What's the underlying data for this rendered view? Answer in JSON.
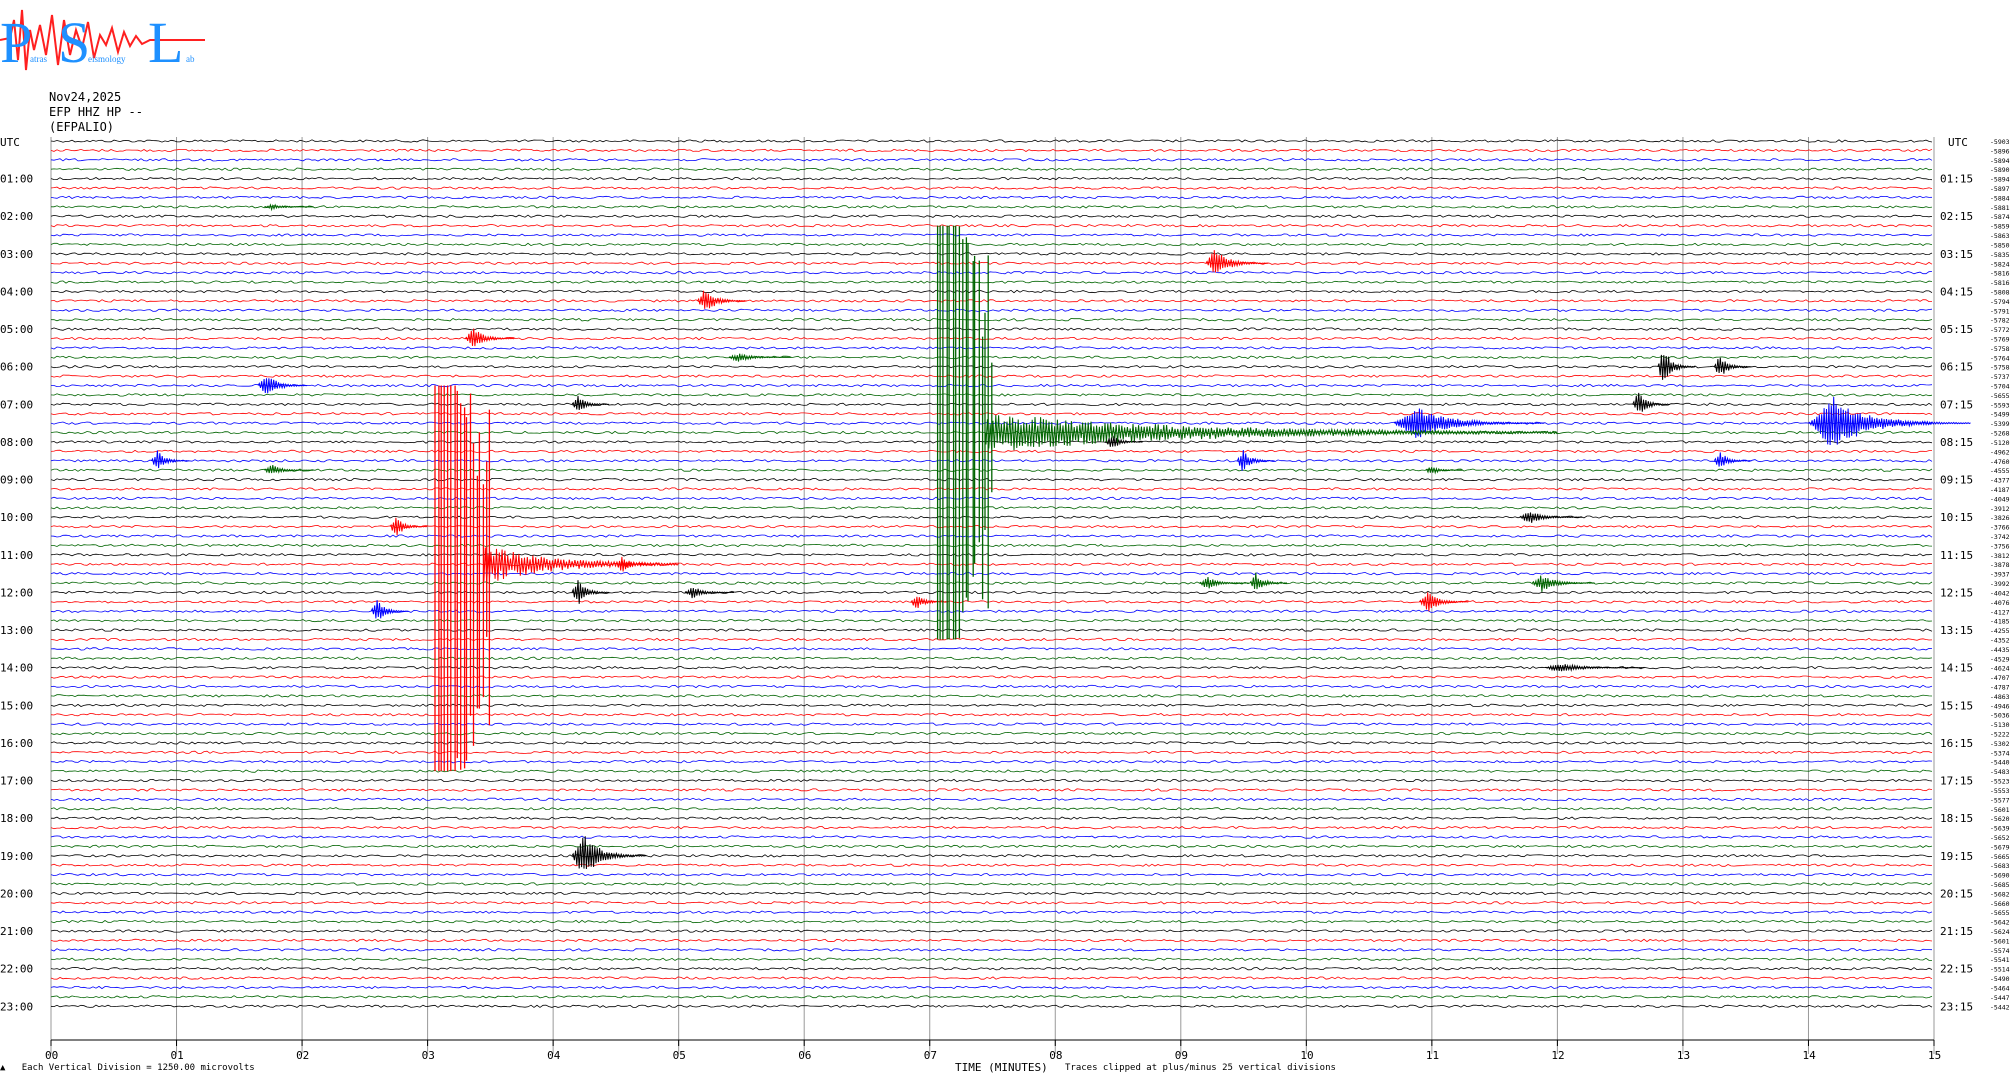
{
  "logo": {
    "letters": [
      "P",
      "S",
      "L"
    ],
    "small_text": [
      "atras",
      "eismology",
      "ab"
    ],
    "colors": {
      "letters": "#1e90ff",
      "wave": "#ff2020"
    }
  },
  "header": {
    "date": "Nov24,2025",
    "station": "EFP HHZ HP --",
    "name": "(EFPALIO)"
  },
  "left_axis_label": "UTC",
  "right_axis_label": "UTC",
  "footer": {
    "marker": "▲",
    "vertical_division": "Each Vertical Division = 1250.00 microvolts",
    "time_label": "TIME (MINUTES)",
    "clip_note": "Traces clipped at plus/minus 25 vertical divisions"
  },
  "chart_data": {
    "type": "helicorder",
    "x_label": "TIME (MINUTES)",
    "x_ticks": [
      "00",
      "01",
      "02",
      "03",
      "04",
      "05",
      "06",
      "07",
      "08",
      "09",
      "10",
      "11",
      "12",
      "13",
      "14",
      "15"
    ],
    "x_range": [
      0,
      15
    ],
    "left_hour_labels": [
      "01:00",
      "02:00",
      "03:00",
      "04:00",
      "05:00",
      "06:00",
      "07:00",
      "08:00",
      "09:00",
      "10:00",
      "11:00",
      "12:00",
      "13:00",
      "14:00",
      "15:00",
      "16:00",
      "17:00",
      "18:00",
      "19:00",
      "20:00",
      "21:00",
      "22:00",
      "23:00"
    ],
    "right_hour_labels": [
      "01:15",
      "02:15",
      "03:15",
      "04:15",
      "05:15",
      "06:15",
      "07:15",
      "08:15",
      "09:15",
      "10:15",
      "11:15",
      "12:15",
      "13:15",
      "14:15",
      "15:15",
      "16:15",
      "17:15",
      "18:15",
      "19:15",
      "20:15",
      "21:15",
      "22:15",
      "23:15"
    ],
    "right_offsets": [
      "-5903",
      "-5896",
      "-5894",
      "-5890",
      "-5894",
      "-5897",
      "-5884",
      "-5881",
      "-5874",
      "-5859",
      "-5863",
      "-5850",
      "-5835",
      "-5824",
      "-5816",
      "-5816",
      "-5808",
      "-5794",
      "-5791",
      "-5782",
      "-5772",
      "-5769",
      "-5758",
      "-5764",
      "-5758",
      "-5737",
      "-5704",
      "-5655",
      "-5593",
      "-5499",
      "-5399",
      "-5268",
      "-5120",
      "-4962",
      "-4760",
      "-4555",
      "-4377",
      "-4187",
      "-4049",
      "-3912",
      "-3826",
      "-3766",
      "-3742",
      "-3756",
      "-3812",
      "-3878",
      "-3937",
      "-3992",
      "-4042",
      "-4076",
      "-4127",
      "-4185",
      "-4255",
      "-4352",
      "-4435",
      "-4529",
      "-4624",
      "-4707",
      "-4787",
      "-4863",
      "-4946",
      "-5036",
      "-5130",
      "-5222",
      "-5302",
      "-5374",
      "-5440",
      "-5483",
      "-5523",
      "-5553",
      "-5577",
      "-5601",
      "-5620",
      "-5639",
      "-5652",
      "-5679",
      "-5665",
      "-5683",
      "-5690",
      "-5685",
      "-5682",
      "-5660",
      "-5655",
      "-5642",
      "-5624",
      "-5601",
      "-5574",
      "-5541",
      "-5514",
      "-5490",
      "-5464",
      "-5447",
      "-5442"
    ],
    "trace_colors": [
      "#000000",
      "#ff0000",
      "#0000ff",
      "#006400"
    ],
    "traces_per_hour": 4,
    "minutes_per_trace": 15,
    "events": [
      {
        "trace": 7,
        "minute": 1.7,
        "amp": 0.3,
        "dur": 0.4
      },
      {
        "trace": 13,
        "minute": 9.2,
        "amp": 1.6,
        "dur": 0.5
      },
      {
        "trace": 17,
        "minute": 5.15,
        "amp": 1.4,
        "dur": 0.4
      },
      {
        "trace": 21,
        "minute": 3.3,
        "amp": 1.2,
        "dur": 0.4
      },
      {
        "trace": 23,
        "minute": 5.4,
        "amp": 0.5,
        "dur": 0.5
      },
      {
        "trace": 24,
        "minute": 12.8,
        "amp": 2.2,
        "dur": 0.3
      },
      {
        "trace": 24,
        "minute": 13.25,
        "amp": 1.3,
        "dur": 0.3
      },
      {
        "trace": 26,
        "minute": 1.65,
        "amp": 1.5,
        "dur": 0.4
      },
      {
        "trace": 28,
        "minute": 4.15,
        "amp": 1.0,
        "dur": 0.3
      },
      {
        "trace": 28,
        "minute": 12.6,
        "amp": 1.5,
        "dur": 0.3
      },
      {
        "trace": 30,
        "minute": 10.7,
        "amp": 1.8,
        "dur": 1.2
      },
      {
        "trace": 30,
        "minute": 14.0,
        "amp": 3.0,
        "dur": 1.3
      },
      {
        "trace": 32,
        "minute": 8.4,
        "amp": 1.0,
        "dur": 0.3
      },
      {
        "trace": 34,
        "minute": 0.8,
        "amp": 1.2,
        "dur": 0.3
      },
      {
        "trace": 34,
        "minute": 9.45,
        "amp": 1.3,
        "dur": 0.3
      },
      {
        "trace": 34,
        "minute": 13.25,
        "amp": 1.1,
        "dur": 0.3
      },
      {
        "trace": 35,
        "minute": 1.7,
        "amp": 0.6,
        "dur": 0.4
      },
      {
        "trace": 35,
        "minute": 10.95,
        "amp": 0.5,
        "dur": 0.3
      },
      {
        "trace": 41,
        "minute": 2.7,
        "amp": 1.2,
        "dur": 0.3
      },
      {
        "trace": 40,
        "minute": 11.7,
        "amp": 0.8,
        "dur": 0.5
      },
      {
        "trace": 45,
        "minute": 4.5,
        "amp": 1.0,
        "dur": 0.3
      },
      {
        "trace": 47,
        "minute": 9.15,
        "amp": 0.7,
        "dur": 0.4
      },
      {
        "trace": 47,
        "minute": 11.8,
        "amp": 1.0,
        "dur": 0.5
      },
      {
        "trace": 48,
        "minute": 4.15,
        "amp": 1.5,
        "dur": 0.3
      },
      {
        "trace": 48,
        "minute": 5.05,
        "amp": 0.7,
        "dur": 0.4
      },
      {
        "trace": 47,
        "minute": 9.55,
        "amp": 1.2,
        "dur": 0.3
      },
      {
        "trace": 49,
        "minute": 6.85,
        "amp": 0.9,
        "dur": 0.3
      },
      {
        "trace": 49,
        "minute": 10.9,
        "amp": 1.3,
        "dur": 0.4
      },
      {
        "trace": 50,
        "minute": 2.55,
        "amp": 1.4,
        "dur": 0.3
      },
      {
        "trace": 56,
        "minute": 11.9,
        "amp": 0.5,
        "dur": 0.8
      },
      {
        "trace": 76,
        "minute": 4.15,
        "amp": 2.5,
        "dur": 0.6
      }
    ],
    "large_events": [
      {
        "start_trace": 26,
        "end_trace": 67,
        "minute": 3.05,
        "color": "#ff0000",
        "tail_trace": 45,
        "tail_end": 5.0
      },
      {
        "start_trace": 9,
        "end_trace": 53,
        "minute": 7.05,
        "color": "#006400",
        "tail_trace": 31,
        "tail_end": 12.0
      }
    ],
    "grid": true
  }
}
